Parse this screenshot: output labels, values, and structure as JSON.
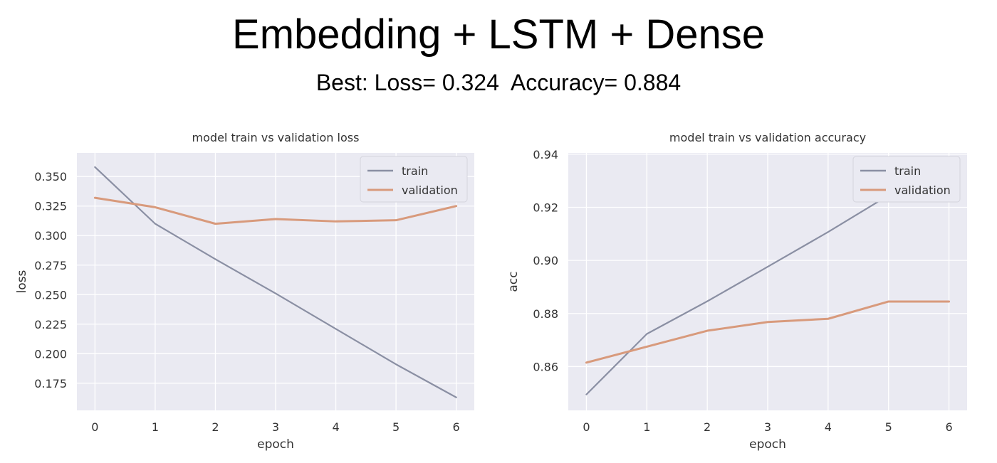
{
  "header": {
    "title": "Embedding + LSTM + Dense",
    "subtitle": "Best: Loss= 0.324  Accuracy= 0.884"
  },
  "chart_data": [
    {
      "type": "line",
      "title": "model train vs validation loss",
      "xlabel": "epoch",
      "ylabel": "loss",
      "x": [
        0,
        1,
        2,
        3,
        4,
        5,
        6
      ],
      "xlim": [
        -0.3,
        6.3
      ],
      "ylim": [
        0.152,
        0.37
      ],
      "xticks": [
        0,
        1,
        2,
        3,
        4,
        5,
        6
      ],
      "yticks": [
        0.175,
        0.2,
        0.225,
        0.25,
        0.275,
        0.3,
        0.325,
        0.35
      ],
      "ytick_decimals": 3,
      "grid": true,
      "legend": "top-right",
      "series": [
        {
          "name": "train",
          "color": "#8a8fa3",
          "values": [
            0.358,
            0.31,
            0.28,
            0.251,
            0.221,
            0.191,
            0.163
          ]
        },
        {
          "name": "validation",
          "color": "#d89a7c",
          "values": [
            0.332,
            0.324,
            0.31,
            0.314,
            0.312,
            0.313,
            0.325
          ]
        }
      ]
    },
    {
      "type": "line",
      "title": "model train vs validation accuracy",
      "xlabel": "epoch",
      "ylabel": "acc",
      "x": [
        0,
        1,
        2,
        3,
        4,
        5,
        6
      ],
      "xlim": [
        -0.3,
        6.3
      ],
      "ylim": [
        0.8435,
        0.9405
      ],
      "xticks": [
        0,
        1,
        2,
        3,
        4,
        5,
        6
      ],
      "yticks": [
        0.86,
        0.88,
        0.9,
        0.92,
        0.94
      ],
      "ytick_decimals": 2,
      "grid": true,
      "legend": "top-right",
      "series": [
        {
          "name": "train",
          "color": "#8a8fa3",
          "values": [
            0.8495,
            0.8723,
            0.8846,
            0.8976,
            0.9107,
            0.9245,
            0.9368
          ]
        },
        {
          "name": "validation",
          "color": "#d89a7c",
          "values": [
            0.8615,
            0.8675,
            0.8735,
            0.8768,
            0.878,
            0.8845,
            0.8845
          ]
        }
      ]
    }
  ]
}
